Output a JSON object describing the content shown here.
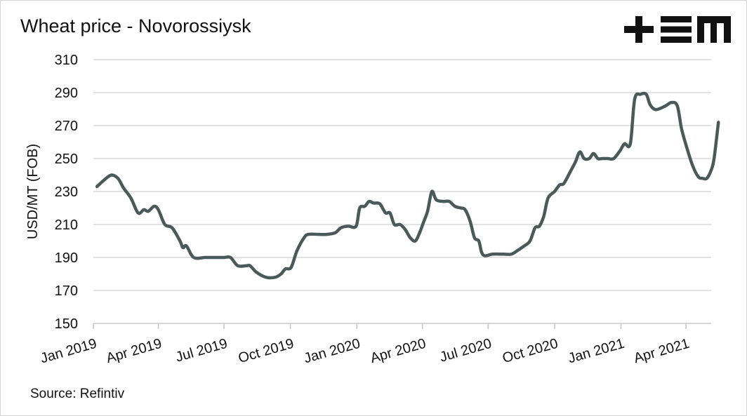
{
  "header": {
    "title": "Wheat price - Novorossiysk",
    "logo_text": "+EM"
  },
  "footer": {
    "source": "Source: Refintiv"
  },
  "colors": {
    "line": "#4a5a5a",
    "grid": "#d9d9d9",
    "axis": "#c8c8c8",
    "text": "#111111",
    "logo": "#111111"
  },
  "chart_data": {
    "type": "line",
    "title": "Wheat price - Novorossiysk",
    "xlabel": "",
    "ylabel": "USD/MT (FOB)",
    "ylim": [
      150,
      310
    ],
    "yticks": [
      150,
      170,
      190,
      210,
      230,
      250,
      270,
      290,
      310
    ],
    "xlim": [
      "2019-01-01",
      "2021-05-15"
    ],
    "xticks": [
      {
        "date": "2019-01-01",
        "label": "Jan 2019"
      },
      {
        "date": "2019-04-01",
        "label": "Apr 2019"
      },
      {
        "date": "2019-07-01",
        "label": "Jul 2019"
      },
      {
        "date": "2019-10-01",
        "label": "Oct 2019"
      },
      {
        "date": "2020-01-01",
        "label": "Jan 2020"
      },
      {
        "date": "2020-04-01",
        "label": "Apr 2020"
      },
      {
        "date": "2020-07-01",
        "label": "Jul 2020"
      },
      {
        "date": "2020-10-01",
        "label": "Oct 2020"
      },
      {
        "date": "2021-01-01",
        "label": "Jan 2021"
      },
      {
        "date": "2021-04-01",
        "label": "Apr 2021"
      }
    ],
    "grid": "horizontal",
    "legend": "none",
    "series": [
      {
        "points": [
          [
            "2019-01-06",
            233
          ],
          [
            "2019-01-16",
            237
          ],
          [
            "2019-01-26",
            240
          ],
          [
            "2019-02-04",
            238
          ],
          [
            "2019-02-12",
            232
          ],
          [
            "2019-02-22",
            226
          ],
          [
            "2019-03-04",
            217
          ],
          [
            "2019-03-12",
            219
          ],
          [
            "2019-03-18",
            218
          ],
          [
            "2019-03-26",
            221
          ],
          [
            "2019-04-01",
            219
          ],
          [
            "2019-04-10",
            210
          ],
          [
            "2019-04-20",
            208
          ],
          [
            "2019-05-01",
            200
          ],
          [
            "2019-05-05",
            196
          ],
          [
            "2019-05-10",
            197
          ],
          [
            "2019-05-20",
            190
          ],
          [
            "2019-06-05",
            190
          ],
          [
            "2019-06-20",
            190
          ],
          [
            "2019-07-01",
            190
          ],
          [
            "2019-07-10",
            190
          ],
          [
            "2019-07-20",
            185
          ],
          [
            "2019-08-01",
            185
          ],
          [
            "2019-08-06",
            185
          ],
          [
            "2019-08-15",
            181
          ],
          [
            "2019-08-28",
            178
          ],
          [
            "2019-09-10",
            178
          ],
          [
            "2019-09-18",
            180
          ],
          [
            "2019-09-24",
            183
          ],
          [
            "2019-10-02",
            184
          ],
          [
            "2019-10-10",
            194
          ],
          [
            "2019-10-20",
            202
          ],
          [
            "2019-10-26",
            204
          ],
          [
            "2019-11-10",
            204
          ],
          [
            "2019-11-20",
            204
          ],
          [
            "2019-12-02",
            205
          ],
          [
            "2019-12-10",
            208
          ],
          [
            "2019-12-20",
            209
          ],
          [
            "2019-12-31",
            209
          ],
          [
            "2020-01-05",
            220
          ],
          [
            "2020-01-12",
            221
          ],
          [
            "2020-01-18",
            224
          ],
          [
            "2020-01-24",
            223
          ],
          [
            "2020-01-30",
            223
          ],
          [
            "2020-02-03",
            222
          ],
          [
            "2020-02-10",
            217
          ],
          [
            "2020-02-16",
            217
          ],
          [
            "2020-02-22",
            210
          ],
          [
            "2020-03-01",
            210
          ],
          [
            "2020-03-08",
            207
          ],
          [
            "2020-03-15",
            202
          ],
          [
            "2020-03-22",
            200
          ],
          [
            "2020-03-28",
            205
          ],
          [
            "2020-04-03",
            212
          ],
          [
            "2020-04-08",
            218
          ],
          [
            "2020-04-14",
            230
          ],
          [
            "2020-04-20",
            225
          ],
          [
            "2020-04-30",
            224
          ],
          [
            "2020-05-08",
            224
          ],
          [
            "2020-05-16",
            221
          ],
          [
            "2020-05-24",
            220
          ],
          [
            "2020-05-30",
            219
          ],
          [
            "2020-06-06",
            212
          ],
          [
            "2020-06-12",
            202
          ],
          [
            "2020-06-18",
            200
          ],
          [
            "2020-06-22",
            193
          ],
          [
            "2020-06-27",
            191
          ],
          [
            "2020-07-07",
            192
          ],
          [
            "2020-07-22",
            192
          ],
          [
            "2020-08-02",
            192
          ],
          [
            "2020-08-10",
            194
          ],
          [
            "2020-08-20",
            197
          ],
          [
            "2020-08-28",
            200
          ],
          [
            "2020-09-04",
            208
          ],
          [
            "2020-09-10",
            209
          ],
          [
            "2020-09-16",
            215
          ],
          [
            "2020-09-22",
            226
          ],
          [
            "2020-10-01",
            230
          ],
          [
            "2020-10-08",
            234
          ],
          [
            "2020-10-14",
            235
          ],
          [
            "2020-10-24",
            243
          ],
          [
            "2020-10-30",
            248
          ],
          [
            "2020-11-05",
            254
          ],
          [
            "2020-11-11",
            250
          ],
          [
            "2020-11-18",
            250
          ],
          [
            "2020-11-24",
            253
          ],
          [
            "2020-11-30",
            250
          ],
          [
            "2020-12-06",
            250
          ],
          [
            "2020-12-14",
            250
          ],
          [
            "2020-12-22",
            250
          ],
          [
            "2020-12-31",
            255
          ],
          [
            "2021-01-06",
            259
          ],
          [
            "2021-01-14",
            259
          ],
          [
            "2021-01-20",
            286
          ],
          [
            "2021-01-28",
            289
          ],
          [
            "2021-02-05",
            289
          ],
          [
            "2021-02-10",
            283
          ],
          [
            "2021-02-16",
            280
          ],
          [
            "2021-02-22",
            280
          ],
          [
            "2021-03-04",
            282
          ],
          [
            "2021-03-12",
            284
          ],
          [
            "2021-03-20",
            282
          ],
          [
            "2021-03-26",
            268
          ],
          [
            "2021-04-02",
            257
          ],
          [
            "2021-04-10",
            246
          ],
          [
            "2021-04-18",
            239
          ],
          [
            "2021-04-24",
            238
          ],
          [
            "2021-04-30",
            238
          ],
          [
            "2021-05-06",
            243
          ],
          [
            "2021-05-10",
            250
          ],
          [
            "2021-05-16",
            272
          ]
        ]
      }
    ]
  }
}
